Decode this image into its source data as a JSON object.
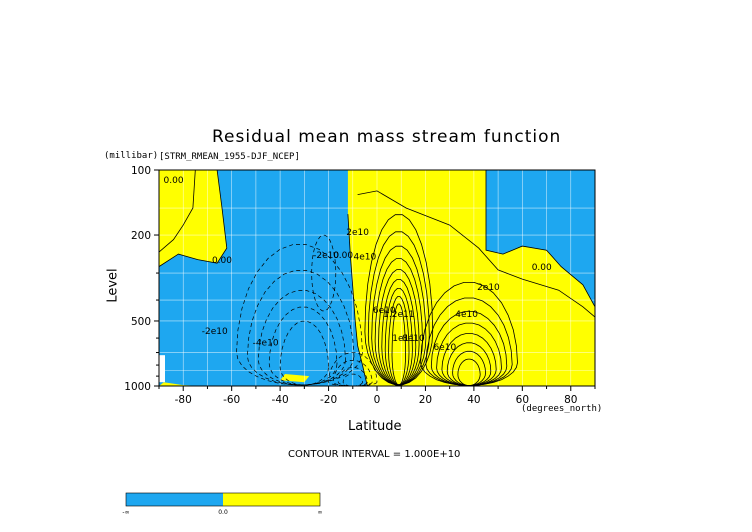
{
  "chart_data": {
    "type": "contour",
    "title": "Residual mean mass stream function",
    "subtitle": "[STRM_RMEAN_1955-DJF_NCEP]",
    "xlabel": "Latitude",
    "xunits": "(degrees_north)",
    "ylabel": "Level",
    "yunits": "(millibar)",
    "x_ticks": [
      "-80",
      "-60",
      "-40",
      "-20",
      "0",
      "20",
      "40",
      "60",
      "80"
    ],
    "y_ticks": [
      "100",
      "200",
      "500",
      "1000"
    ],
    "xlim": [
      -90,
      90
    ],
    "ylim": [
      1000,
      100
    ],
    "y_scale": "log",
    "contour_interval_label": "CONTOUR INTERVAL = 1.000E+10",
    "fill_colors": {
      "negative": "#1ea7f0",
      "positive": "#ffff00"
    },
    "contour_labels": [
      {
        "text": "0.00",
        "lat": -84,
        "p": 115
      },
      {
        "text": "0.00",
        "lat": -64,
        "p": 270
      },
      {
        "text": "-2e10",
        "lat": -67,
        "p": 575
      },
      {
        "text": "-4e10",
        "lat": -46,
        "p": 650
      },
      {
        "text": "-2e10",
        "lat": -21,
        "p": 255
      },
      {
        "text": "0.00",
        "lat": -14,
        "p": 255
      },
      {
        "text": "2e10",
        "lat": -8,
        "p": 200
      },
      {
        "text": "4e10",
        "lat": -5,
        "p": 260
      },
      {
        "text": "6e10",
        "lat": 3,
        "p": 460
      },
      {
        "text": "1.2e11",
        "lat": 9,
        "p": 480
      },
      {
        "text": "1e11",
        "lat": 11,
        "p": 620
      },
      {
        "text": "8e10",
        "lat": 15,
        "p": 620
      },
      {
        "text": "6e10",
        "lat": 28,
        "p": 680
      },
      {
        "text": "4e10",
        "lat": 37,
        "p": 480
      },
      {
        "text": "2e10",
        "lat": 46,
        "p": 360
      },
      {
        "text": "0.00",
        "lat": 68,
        "p": 290
      }
    ],
    "colorbar": {
      "labels": [
        "-∞",
        "0.0",
        "∞"
      ]
    }
  }
}
